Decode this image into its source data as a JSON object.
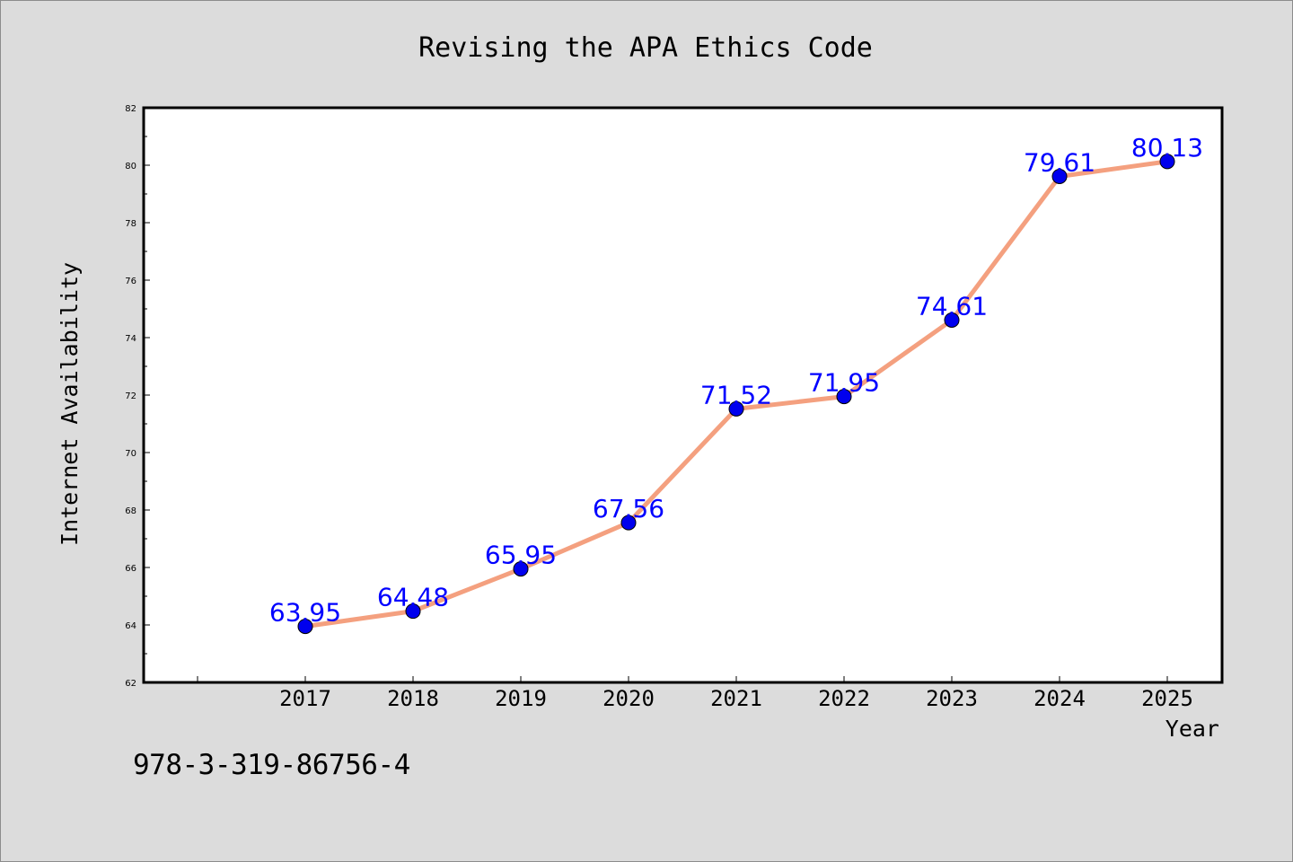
{
  "footer": {
    "identifier": "978-3-319-86756-4"
  },
  "chart_data": {
    "type": "line",
    "title": "Revising the APA Ethics Code",
    "xlabel": "Year",
    "ylabel": "Internet Availability",
    "x": [
      "2017",
      "2018",
      "2019",
      "2020",
      "2021",
      "2022",
      "2023",
      "2024",
      "2025"
    ],
    "series": [
      {
        "values": [
          63.95,
          64.48,
          65.95,
          67.56,
          71.52,
          71.95,
          74.61,
          79.61,
          80.13
        ],
        "labels": [
          "63.95",
          "64.48",
          "65.95",
          "67.56",
          "71.52",
          "71.95",
          "74.61",
          "79.61",
          "80.13"
        ],
        "line_color": "#f4a07f",
        "marker_color": "#0000ee",
        "label_color": "#0000ff"
      }
    ],
    "ylim": [
      62,
      82
    ],
    "yticks": [
      "62",
      "64",
      "66",
      "68",
      "70",
      "72",
      "74",
      "76",
      "78",
      "80",
      "82"
    ],
    "grid": false,
    "legend": "none",
    "background": "#dcdcdc",
    "plot_background": "#ffffff"
  }
}
